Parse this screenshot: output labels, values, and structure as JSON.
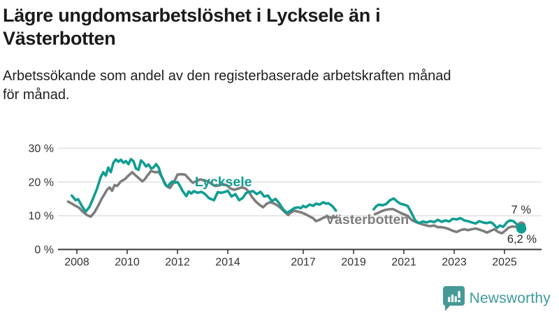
{
  "header": {
    "title_lines": [
      "Lägre ungdomsarbetslöshet i Lycksele än i",
      "Västerbotten"
    ],
    "subtitle_lines": [
      "Arbetssökande som andel av den registerbaserade arbetskraften månad",
      "för månad."
    ]
  },
  "footer": {
    "brand": "Newsworthy",
    "logo_icon": "bar-chart-exclamation-bubble-icon",
    "brand_color": "#3f9b98"
  },
  "colors": {
    "lycksele": "#109d92",
    "vasterbotten": "#7d7d7d",
    "axis": "#3a3a3a",
    "grid": "#dedede",
    "annotation": "#2b2b2b"
  },
  "chart_data": {
    "type": "line",
    "grid": true,
    "x_axis": {
      "ticks": [
        2008,
        2010,
        2012,
        2014,
        2017,
        2019,
        2021,
        2023,
        2025
      ],
      "tick_labels": [
        "2008",
        "2010",
        "2012",
        "2014",
        "2017",
        "2019",
        "2021",
        "2023",
        "2025"
      ],
      "range": [
        2007.25,
        2026.1
      ]
    },
    "y_axis": {
      "unit": "%",
      "ticks": [
        0,
        10,
        20,
        30
      ],
      "tick_labels": [
        "0 %",
        "10 %",
        "20 %",
        "30 %"
      ],
      "range": [
        0,
        30
      ]
    },
    "series": [
      {
        "name": "Västerbotten",
        "color": "#7d7d7d",
        "label_anchor": {
          "year": 2017.89,
          "value": 7.55
        },
        "end_label": "7 %",
        "end_value": 7.0,
        "segments": [
          [
            [
              2007.65,
              14.2
            ],
            [
              2007.8,
              13.6
            ],
            [
              2007.95,
              12.9
            ],
            [
              2008.1,
              12.3
            ],
            [
              2008.25,
              11.1
            ],
            [
              2008.4,
              10.2
            ],
            [
              2008.55,
              9.7
            ],
            [
              2008.7,
              11.0
            ],
            [
              2008.85,
              13.0
            ],
            [
              2009.0,
              15.2
            ],
            [
              2009.1,
              16.4
            ],
            [
              2009.2,
              17.7
            ],
            [
              2009.3,
              18.4
            ],
            [
              2009.4,
              17.4
            ],
            [
              2009.5,
              19.1
            ],
            [
              2009.6,
              18.8
            ],
            [
              2009.75,
              20.2
            ],
            [
              2009.9,
              20.8
            ],
            [
              2010.05,
              21.9
            ],
            [
              2010.2,
              22.9
            ],
            [
              2010.3,
              22.2
            ],
            [
              2010.45,
              21.2
            ],
            [
              2010.6,
              20.2
            ],
            [
              2010.7,
              20.8
            ],
            [
              2010.8,
              21.9
            ],
            [
              2010.95,
              23.3
            ],
            [
              2011.1,
              22.9
            ],
            [
              2011.25,
              23.0
            ],
            [
              2011.4,
              21.2
            ],
            [
              2011.55,
              18.9
            ],
            [
              2011.7,
              18.2
            ],
            [
              2011.85,
              19.8
            ],
            [
              2012.0,
              22.2
            ],
            [
              2012.15,
              22.3
            ],
            [
              2012.3,
              22.2
            ],
            [
              2012.45,
              21.0
            ],
            [
              2012.6,
              19.8
            ],
            [
              2012.75,
              20.2
            ],
            [
              2012.9,
              20.8
            ],
            [
              2013.05,
              20.5
            ],
            [
              2013.2,
              20.2
            ],
            [
              2013.35,
              19.5
            ],
            [
              2013.5,
              18.8
            ],
            [
              2013.65,
              19.0
            ],
            [
              2013.8,
              19.3
            ],
            [
              2013.95,
              19.1
            ],
            [
              2014.1,
              18.1
            ],
            [
              2014.25,
              17.7
            ],
            [
              2014.4,
              18.0
            ],
            [
              2014.55,
              18.4
            ],
            [
              2014.7,
              18.1
            ],
            [
              2014.85,
              17.0
            ],
            [
              2014.95,
              15.7
            ],
            [
              2015.1,
              14.3
            ],
            [
              2015.25,
              13.3
            ],
            [
              2015.4,
              12.5
            ],
            [
              2015.55,
              13.6
            ],
            [
              2015.7,
              14.0
            ],
            [
              2015.85,
              13.6
            ],
            [
              2016.0,
              12.9
            ],
            [
              2016.1,
              12.3
            ],
            [
              2016.25,
              11.2
            ],
            [
              2016.4,
              10.2
            ],
            [
              2016.5,
              10.9
            ],
            [
              2016.65,
              11.5
            ],
            [
              2016.8,
              11.2
            ],
            [
              2016.95,
              10.9
            ],
            [
              2017.1,
              10.4
            ],
            [
              2017.25,
              9.8
            ],
            [
              2017.4,
              9.2
            ],
            [
              2017.5,
              8.4
            ],
            [
              2017.65,
              8.8
            ],
            [
              2017.8,
              9.4
            ],
            [
              2017.95,
              9.8
            ],
            [
              2018.1,
              9.4
            ],
            [
              2018.3,
              9.6
            ]
          ],
          [
            [
              2019.85,
              10.5
            ],
            [
              2020.0,
              10.9
            ],
            [
              2020.1,
              11.3
            ],
            [
              2020.25,
              11.7
            ],
            [
              2020.4,
              11.9
            ],
            [
              2020.55,
              12.0
            ],
            [
              2020.7,
              11.5
            ],
            [
              2020.85,
              10.9
            ],
            [
              2021.0,
              10.4
            ],
            [
              2021.15,
              10.0
            ],
            [
              2021.3,
              8.8
            ],
            [
              2021.45,
              8.2
            ],
            [
              2021.6,
              7.8
            ],
            [
              2021.75,
              7.4
            ],
            [
              2021.9,
              7.1
            ],
            [
              2022.05,
              6.9
            ],
            [
              2022.2,
              7.1
            ],
            [
              2022.35,
              6.6
            ],
            [
              2022.5,
              6.6
            ],
            [
              2022.65,
              6.4
            ],
            [
              2022.8,
              6.0
            ],
            [
              2022.95,
              5.5
            ],
            [
              2023.1,
              5.2
            ],
            [
              2023.25,
              5.7
            ],
            [
              2023.4,
              6.0
            ],
            [
              2023.55,
              5.7
            ],
            [
              2023.7,
              6.0
            ],
            [
              2023.85,
              6.2
            ],
            [
              2024.0,
              5.9
            ],
            [
              2024.15,
              5.5
            ],
            [
              2024.3,
              5.0
            ],
            [
              2024.45,
              5.5
            ],
            [
              2024.6,
              6.0
            ],
            [
              2024.75,
              5.2
            ],
            [
              2024.9,
              4.8
            ],
            [
              2025.05,
              5.7
            ],
            [
              2025.15,
              6.4
            ],
            [
              2025.3,
              6.8
            ],
            [
              2025.45,
              6.7
            ],
            [
              2025.55,
              7.1
            ],
            [
              2025.67,
              7.0
            ]
          ]
        ]
      },
      {
        "name": "Lycksele",
        "color": "#109d92",
        "label_anchor": {
          "year": 2012.69,
          "value": 18.72
        },
        "end_label": "6,2 %",
        "end_value": 6.2,
        "segments": [
          [
            [
              2007.8,
              16.0
            ],
            [
              2007.95,
              14.6
            ],
            [
              2008.05,
              14.9
            ],
            [
              2008.2,
              12.9
            ],
            [
              2008.35,
              11.2
            ],
            [
              2008.5,
              12.6
            ],
            [
              2008.65,
              15.2
            ],
            [
              2008.8,
              18.0
            ],
            [
              2008.95,
              21.5
            ],
            [
              2009.05,
              22.9
            ],
            [
              2009.15,
              21.9
            ],
            [
              2009.25,
              24.3
            ],
            [
              2009.35,
              22.9
            ],
            [
              2009.45,
              25.7
            ],
            [
              2009.55,
              26.7
            ],
            [
              2009.65,
              26.0
            ],
            [
              2009.75,
              26.6
            ],
            [
              2009.85,
              25.7
            ],
            [
              2009.95,
              26.2
            ],
            [
              2010.05,
              25.3
            ],
            [
              2010.15,
              26.8
            ],
            [
              2010.25,
              26.2
            ],
            [
              2010.35,
              24.0
            ],
            [
              2010.45,
              23.6
            ],
            [
              2010.55,
              26.4
            ],
            [
              2010.65,
              25.7
            ],
            [
              2010.75,
              24.6
            ],
            [
              2010.85,
              25.2
            ],
            [
              2010.95,
              24.0
            ],
            [
              2011.05,
              24.3
            ],
            [
              2011.15,
              25.3
            ],
            [
              2011.25,
              24.3
            ],
            [
              2011.35,
              22.0
            ],
            [
              2011.5,
              19.4
            ],
            [
              2011.6,
              18.6
            ],
            [
              2011.7,
              19.5
            ],
            [
              2011.8,
              20.2
            ],
            [
              2011.9,
              19.8
            ],
            [
              2012.0,
              20.0
            ],
            [
              2012.1,
              18.8
            ],
            [
              2012.2,
              17.4
            ],
            [
              2012.35,
              15.8
            ],
            [
              2012.45,
              17.2
            ],
            [
              2012.55,
              16.6
            ],
            [
              2012.65,
              17.3
            ],
            [
              2012.8,
              16.8
            ],
            [
              2012.95,
              17.1
            ],
            [
              2013.1,
              16.4
            ],
            [
              2013.25,
              15.2
            ],
            [
              2013.45,
              14.6
            ],
            [
              2013.6,
              17.0
            ],
            [
              2013.75,
              16.8
            ],
            [
              2013.9,
              17.1
            ],
            [
              2014.0,
              17.4
            ],
            [
              2014.15,
              15.7
            ],
            [
              2014.3,
              16.4
            ],
            [
              2014.45,
              14.6
            ],
            [
              2014.6,
              15.3
            ],
            [
              2014.72,
              16.7
            ],
            [
              2014.85,
              17.0
            ],
            [
              2015.0,
              17.3
            ],
            [
              2015.15,
              16.4
            ],
            [
              2015.3,
              17.1
            ],
            [
              2015.45,
              15.7
            ],
            [
              2015.6,
              16.0
            ],
            [
              2015.75,
              14.3
            ],
            [
              2015.9,
              15.0
            ],
            [
              2016.05,
              13.6
            ],
            [
              2016.2,
              11.9
            ],
            [
              2016.35,
              10.9
            ],
            [
              2016.5,
              11.5
            ],
            [
              2016.65,
              12.3
            ],
            [
              2016.8,
              12.5
            ],
            [
              2016.9,
              12.2
            ],
            [
              2017.0,
              12.9
            ],
            [
              2017.1,
              12.5
            ],
            [
              2017.25,
              13.3
            ],
            [
              2017.4,
              12.9
            ],
            [
              2017.5,
              13.6
            ],
            [
              2017.65,
              13.3
            ],
            [
              2017.8,
              14.0
            ],
            [
              2017.9,
              13.6
            ],
            [
              2018.0,
              13.7
            ],
            [
              2018.15,
              12.9
            ],
            [
              2018.3,
              11.5
            ]
          ],
          [
            [
              2019.8,
              11.9
            ],
            [
              2019.9,
              12.8
            ],
            [
              2020.0,
              13.3
            ],
            [
              2020.15,
              13.1
            ],
            [
              2020.3,
              13.5
            ],
            [
              2020.45,
              14.6
            ],
            [
              2020.6,
              15.1
            ],
            [
              2020.72,
              14.3
            ],
            [
              2020.85,
              13.6
            ],
            [
              2021.0,
              13.3
            ],
            [
              2021.15,
              12.9
            ],
            [
              2021.3,
              10.9
            ],
            [
              2021.45,
              8.6
            ],
            [
              2021.6,
              7.8
            ],
            [
              2021.75,
              8.3
            ],
            [
              2021.9,
              8.0
            ],
            [
              2022.05,
              8.4
            ],
            [
              2022.2,
              8.1
            ],
            [
              2022.35,
              8.8
            ],
            [
              2022.5,
              8.2
            ],
            [
              2022.65,
              8.6
            ],
            [
              2022.8,
              8.3
            ],
            [
              2022.95,
              9.1
            ],
            [
              2023.1,
              8.9
            ],
            [
              2023.25,
              9.3
            ],
            [
              2023.4,
              8.6
            ],
            [
              2023.55,
              8.4
            ],
            [
              2023.7,
              8.0
            ],
            [
              2023.85,
              7.7
            ],
            [
              2024.0,
              8.4
            ],
            [
              2024.15,
              8.0
            ],
            [
              2024.3,
              7.8
            ],
            [
              2024.45,
              8.1
            ],
            [
              2024.55,
              7.6
            ],
            [
              2024.7,
              6.4
            ],
            [
              2024.82,
              7.1
            ],
            [
              2024.95,
              6.7
            ],
            [
              2025.1,
              8.1
            ],
            [
              2025.22,
              8.6
            ],
            [
              2025.35,
              8.4
            ],
            [
              2025.5,
              7.4
            ],
            [
              2025.6,
              6.6
            ],
            [
              2025.67,
              6.2
            ]
          ]
        ]
      }
    ]
  }
}
